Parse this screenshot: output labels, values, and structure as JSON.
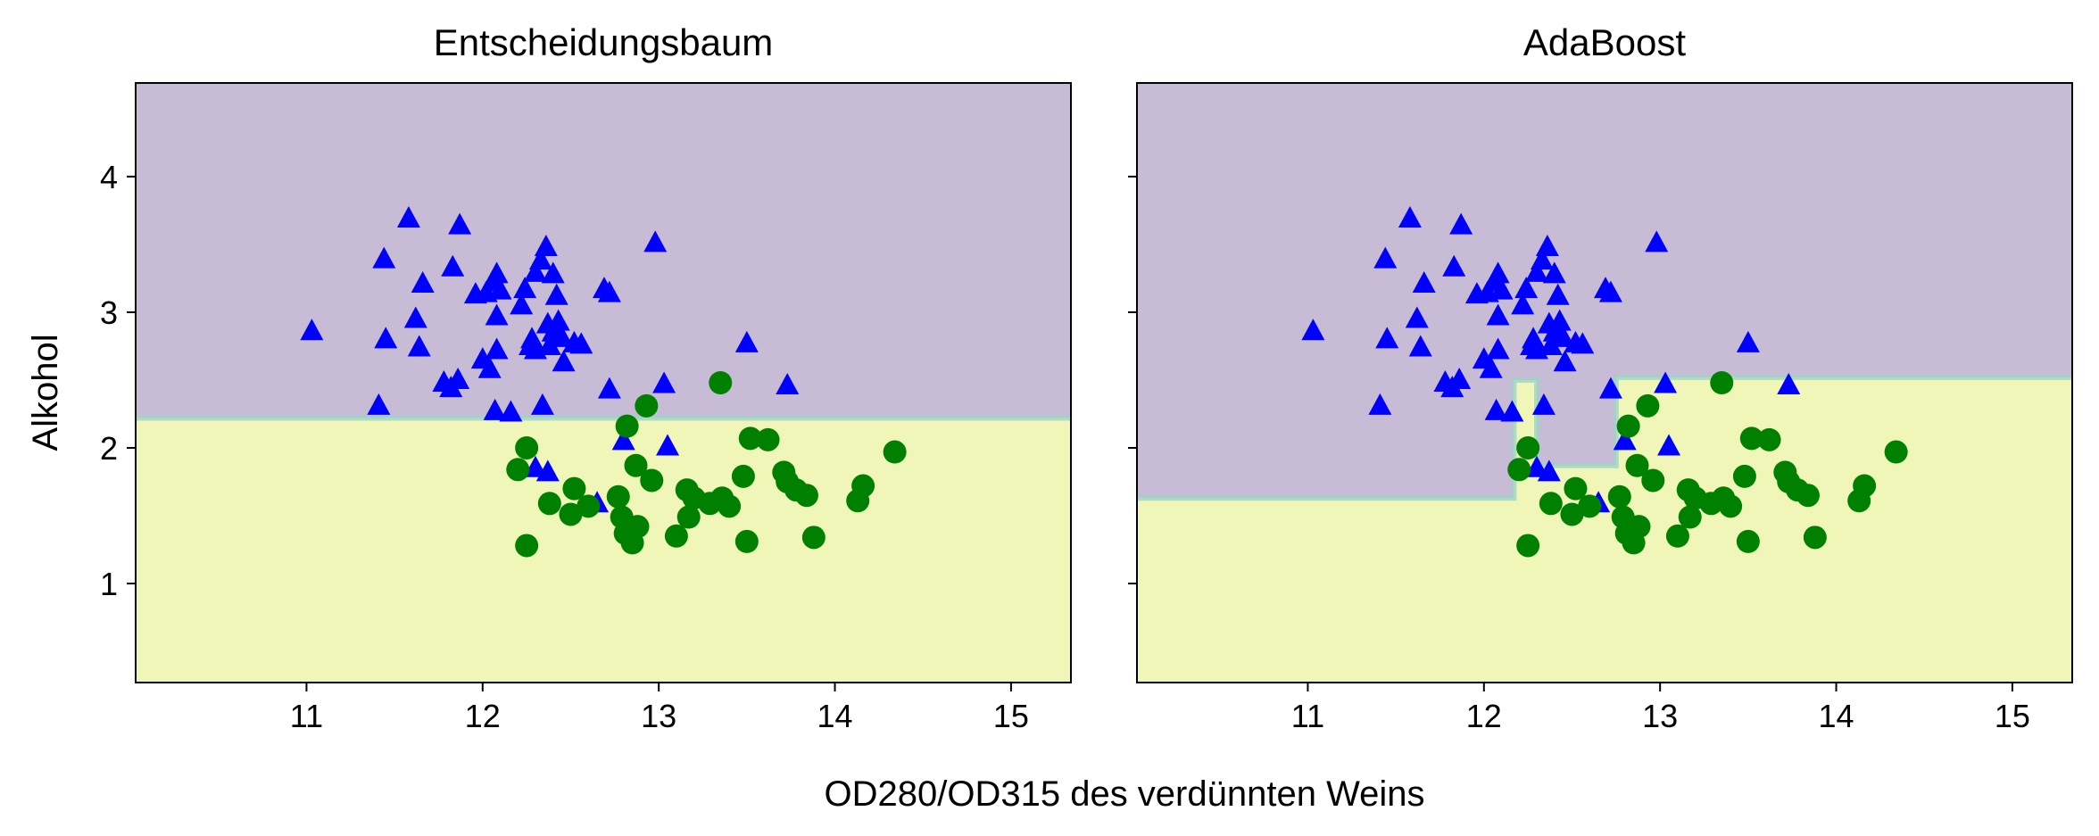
{
  "figure": {
    "xlabel": "OD280/OD315 des verdünnten Weins",
    "ylabel": "Alkohol"
  },
  "colors": {
    "region_class0": "#c8bbd5",
    "region_class1": "#f0f5b8",
    "boundary": "#9fd3c7",
    "marker_class0": "#0000ff",
    "marker_class1": "#008000"
  },
  "markers": {
    "class0": "triangle",
    "class1": "circle"
  },
  "chart_data": [
    {
      "type": "scatter",
      "title": "Entscheidungsbaum",
      "xlim": [
        10.03,
        15.34
      ],
      "ylim": [
        0.27,
        4.69
      ],
      "xticks": [
        11,
        12,
        13,
        14,
        15
      ],
      "yticks": [
        1,
        2,
        3,
        4
      ],
      "decision_regions": {
        "class0": "upper",
        "boundary_y": [
          [
            10.03,
            2.22
          ],
          [
            15.34,
            2.22
          ]
        ]
      }
    },
    {
      "type": "scatter",
      "title": "AdaBoost",
      "xlim": [
        10.03,
        15.34
      ],
      "ylim": [
        0.27,
        4.69
      ],
      "xticks": [
        11,
        12,
        13,
        14,
        15
      ],
      "yticks": [
        1,
        2,
        3,
        4
      ],
      "decision_regions": {
        "class0": "upper",
        "boundary_y": [
          [
            10.03,
            1.63
          ],
          [
            12.17,
            1.63
          ],
          [
            12.17,
            2.5
          ],
          [
            12.3,
            2.5
          ],
          [
            12.3,
            1.87
          ],
          [
            12.75,
            1.87
          ],
          [
            12.75,
            2.52
          ],
          [
            13.1,
            2.52
          ],
          [
            13.1,
            2.52
          ],
          [
            15.34,
            2.52
          ]
        ]
      }
    }
  ],
  "points": {
    "class0": [
      [
        11.03,
        2.86
      ],
      [
        11.44,
        3.39
      ],
      [
        11.45,
        2.8
      ],
      [
        11.58,
        3.69
      ],
      [
        11.62,
        2.95
      ],
      [
        11.64,
        2.74
      ],
      [
        11.66,
        3.21
      ],
      [
        11.78,
        2.48
      ],
      [
        11.82,
        2.44
      ],
      [
        11.83,
        3.33
      ],
      [
        11.86,
        2.5
      ],
      [
        11.87,
        3.64
      ],
      [
        11.96,
        3.13
      ],
      [
        12.0,
        2.65
      ],
      [
        12.02,
        3.14
      ],
      [
        12.04,
        2.58
      ],
      [
        12.06,
        3.22
      ],
      [
        12.08,
        3.28
      ],
      [
        12.08,
        2.97
      ],
      [
        12.08,
        2.72
      ],
      [
        12.1,
        3.16
      ],
      [
        12.07,
        2.27
      ],
      [
        12.16,
        2.26
      ],
      [
        12.22,
        3.05
      ],
      [
        12.24,
        3.17
      ],
      [
        12.27,
        2.75
      ],
      [
        12.28,
        2.8
      ],
      [
        12.3,
        3.29
      ],
      [
        12.3,
        2.72
      ],
      [
        12.33,
        3.38
      ],
      [
        12.34,
        2.31
      ],
      [
        12.36,
        3.48
      ],
      [
        12.37,
        2.91
      ],
      [
        12.38,
        2.75
      ],
      [
        12.4,
        2.85
      ],
      [
        12.4,
        3.28
      ],
      [
        12.42,
        2.84
      ],
      [
        12.42,
        3.12
      ],
      [
        12.43,
        2.93
      ],
      [
        12.45,
        2.81
      ],
      [
        12.46,
        2.63
      ],
      [
        12.52,
        2.77
      ],
      [
        12.56,
        2.76
      ],
      [
        12.69,
        3.17
      ],
      [
        12.72,
        3.14
      ],
      [
        12.72,
        2.43
      ],
      [
        12.8,
        2.05
      ],
      [
        12.98,
        3.51
      ],
      [
        13.03,
        2.47
      ],
      [
        13.05,
        2.01
      ],
      [
        11.41,
        2.31
      ],
      [
        13.5,
        2.77
      ],
      [
        13.73,
        2.46
      ],
      [
        12.3,
        1.85
      ],
      [
        12.37,
        1.82
      ],
      [
        12.65,
        1.59
      ]
    ],
    "class1": [
      [
        12.25,
        2.0
      ],
      [
        12.2,
        1.84
      ],
      [
        12.25,
        1.28
      ],
      [
        12.38,
        1.59
      ],
      [
        12.5,
        1.51
      ],
      [
        12.52,
        1.7
      ],
      [
        12.6,
        1.57
      ],
      [
        12.77,
        1.64
      ],
      [
        12.79,
        1.49
      ],
      [
        12.81,
        1.37
      ],
      [
        12.84,
        1.41
      ],
      [
        12.85,
        1.3
      ],
      [
        12.88,
        1.42
      ],
      [
        12.82,
        2.16
      ],
      [
        12.87,
        1.87
      ],
      [
        12.93,
        2.31
      ],
      [
        12.96,
        1.76
      ],
      [
        13.1,
        1.35
      ],
      [
        13.16,
        1.69
      ],
      [
        13.17,
        1.49
      ],
      [
        13.2,
        1.63
      ],
      [
        13.29,
        1.59
      ],
      [
        13.36,
        1.63
      ],
      [
        13.4,
        1.57
      ],
      [
        13.35,
        2.48
      ],
      [
        13.48,
        1.79
      ],
      [
        13.5,
        1.31
      ],
      [
        13.52,
        2.07
      ],
      [
        13.62,
        2.06
      ],
      [
        13.71,
        1.82
      ],
      [
        13.73,
        1.75
      ],
      [
        13.78,
        1.69
      ],
      [
        13.84,
        1.65
      ],
      [
        13.88,
        1.34
      ],
      [
        14.13,
        1.61
      ],
      [
        14.16,
        1.72
      ],
      [
        14.34,
        1.97
      ]
    ]
  }
}
